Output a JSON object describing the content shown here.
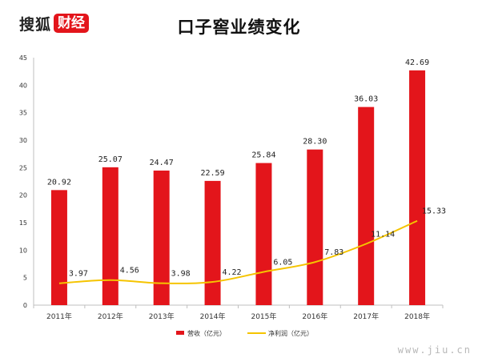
{
  "header": {
    "brand_left": "搜狐",
    "brand_right": "财经"
  },
  "watermark": "www.jiu.cn",
  "colors": {
    "bar": "#e3151b",
    "line": "#f5c400",
    "axis": "#bfbfbf"
  },
  "chart_data": {
    "type": "bar",
    "title": "口子窖业绩变化",
    "categories": [
      "2011年",
      "2012年",
      "2013年",
      "2014年",
      "2015年",
      "2016年",
      "2017年",
      "2018年"
    ],
    "ylim": [
      0,
      45
    ],
    "yticks": [
      0,
      5,
      10,
      15,
      20,
      25,
      30,
      35,
      40,
      45
    ],
    "grid": false,
    "legend_position": "bottom",
    "series": [
      {
        "name": "营收（亿元）",
        "kind": "bar",
        "values": [
          20.92,
          25.07,
          24.47,
          22.59,
          25.84,
          28.3,
          36.03,
          42.69
        ],
        "labels": [
          "20.92",
          "25.07",
          "24.47",
          "22.59",
          "25.84",
          "28.30",
          "36.03",
          "42.69"
        ]
      },
      {
        "name": "净利润（亿元）",
        "kind": "line",
        "values": [
          3.97,
          4.56,
          3.98,
          4.22,
          6.05,
          7.83,
          11.14,
          15.33
        ],
        "labels": [
          "3.97",
          "4.56",
          "3.98",
          "4.22",
          "6.05",
          "7.83",
          "11.14",
          "15.33"
        ]
      }
    ]
  }
}
